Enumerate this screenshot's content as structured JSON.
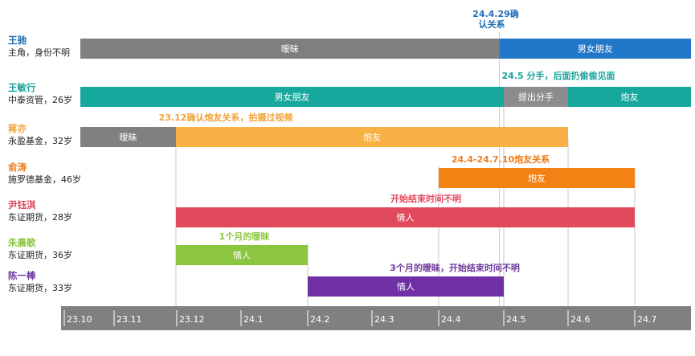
{
  "chart_data": {
    "type": "timeline",
    "x_ticks": [
      "23.10",
      "23.11",
      "23.12",
      "24.1",
      "24.2",
      "24.3",
      "24.4",
      "24.5",
      "24.6",
      "24.7"
    ],
    "people": [
      {
        "name": "王驰",
        "desc": "主角，身份不明",
        "name_color": "#1F6FB5",
        "segments": [
          {
            "start": "2023-10",
            "end": "2024-04-29",
            "label": "暧昧",
            "color": "#7F7F7F"
          },
          {
            "start": "2024-04-29",
            "end": "2024-08",
            "label": "男女朋友",
            "color": "#2278C8"
          }
        ]
      },
      {
        "name": "王敏行",
        "desc": "中泰资管，26岁",
        "name_color": "#1AA39A",
        "segments": [
          {
            "start": "2023-10",
            "end": "2024-05",
            "label": "男女朋友",
            "color": "#17A89D"
          },
          {
            "start": "2024-05",
            "end": "2024-06",
            "label": "提出分手",
            "color": "#8C8C8C"
          },
          {
            "start": "2024-06",
            "end": "2024-08",
            "label": "炮友",
            "color": "#17A89D"
          }
        ]
      },
      {
        "name": "蒋亦",
        "desc": "永盈基金，32岁",
        "name_color": "#F0A33A",
        "segments": [
          {
            "start": "2023-10",
            "end": "2023-12",
            "label": "暧昧",
            "color": "#808080"
          },
          {
            "start": "2023-12",
            "end": "2024-06",
            "label": "炮友",
            "color": "#F9B045"
          }
        ]
      },
      {
        "name": "俞涛",
        "desc": "施罗德基金，46岁",
        "name_color": "#EE7D1B",
        "segments": [
          {
            "start": "2024-04",
            "end": "2024-07",
            "label": "炮友",
            "color": "#F48114"
          }
        ]
      },
      {
        "name": "尹钰淇",
        "desc": "东证期货，28岁",
        "name_color": "#E14A5C",
        "segments": [
          {
            "start": "2023-12",
            "end": "2024-07",
            "label": "情人",
            "color": "#E14A5C"
          }
        ]
      },
      {
        "name": "朱晨歌",
        "desc": "东证期货，36岁",
        "name_color": "#8CC63F",
        "segments": [
          {
            "start": "2023-12",
            "end": "2024-02",
            "label": "情人",
            "color": "#8CC63F"
          }
        ]
      },
      {
        "name": "陈一棒",
        "desc": "东证期货，33岁",
        "name_color": "#6E3A9E",
        "segments": [
          {
            "start": "2024-02",
            "end": "2024-05",
            "label": "情人",
            "color": "#6E30A4"
          }
        ]
      }
    ],
    "annotations": [
      {
        "lines": [
          "24.4.29确",
          "认关系"
        ],
        "color": "#1F6FB5"
      },
      {
        "lines": [
          "24.5 分手，后面扔偷偷见面"
        ],
        "color": "#1AA39A"
      },
      {
        "lines": [
          "23.12确认炮友关系，拍摄过视频"
        ],
        "color": "#F0A33A"
      },
      {
        "lines": [
          "24.4-24.7.10炮友关系"
        ],
        "color": "#EE7D1B"
      },
      {
        "lines": [
          "开始结束时间不明"
        ],
        "color": "#E14A5C"
      },
      {
        "lines": [
          "1个月的暧昧"
        ],
        "color": "#8CC63F"
      },
      {
        "lines": [
          "3个月的暧昧，开始结束时间不明"
        ],
        "color": "#6E3A9E"
      }
    ],
    "axis_color": "#808080"
  }
}
